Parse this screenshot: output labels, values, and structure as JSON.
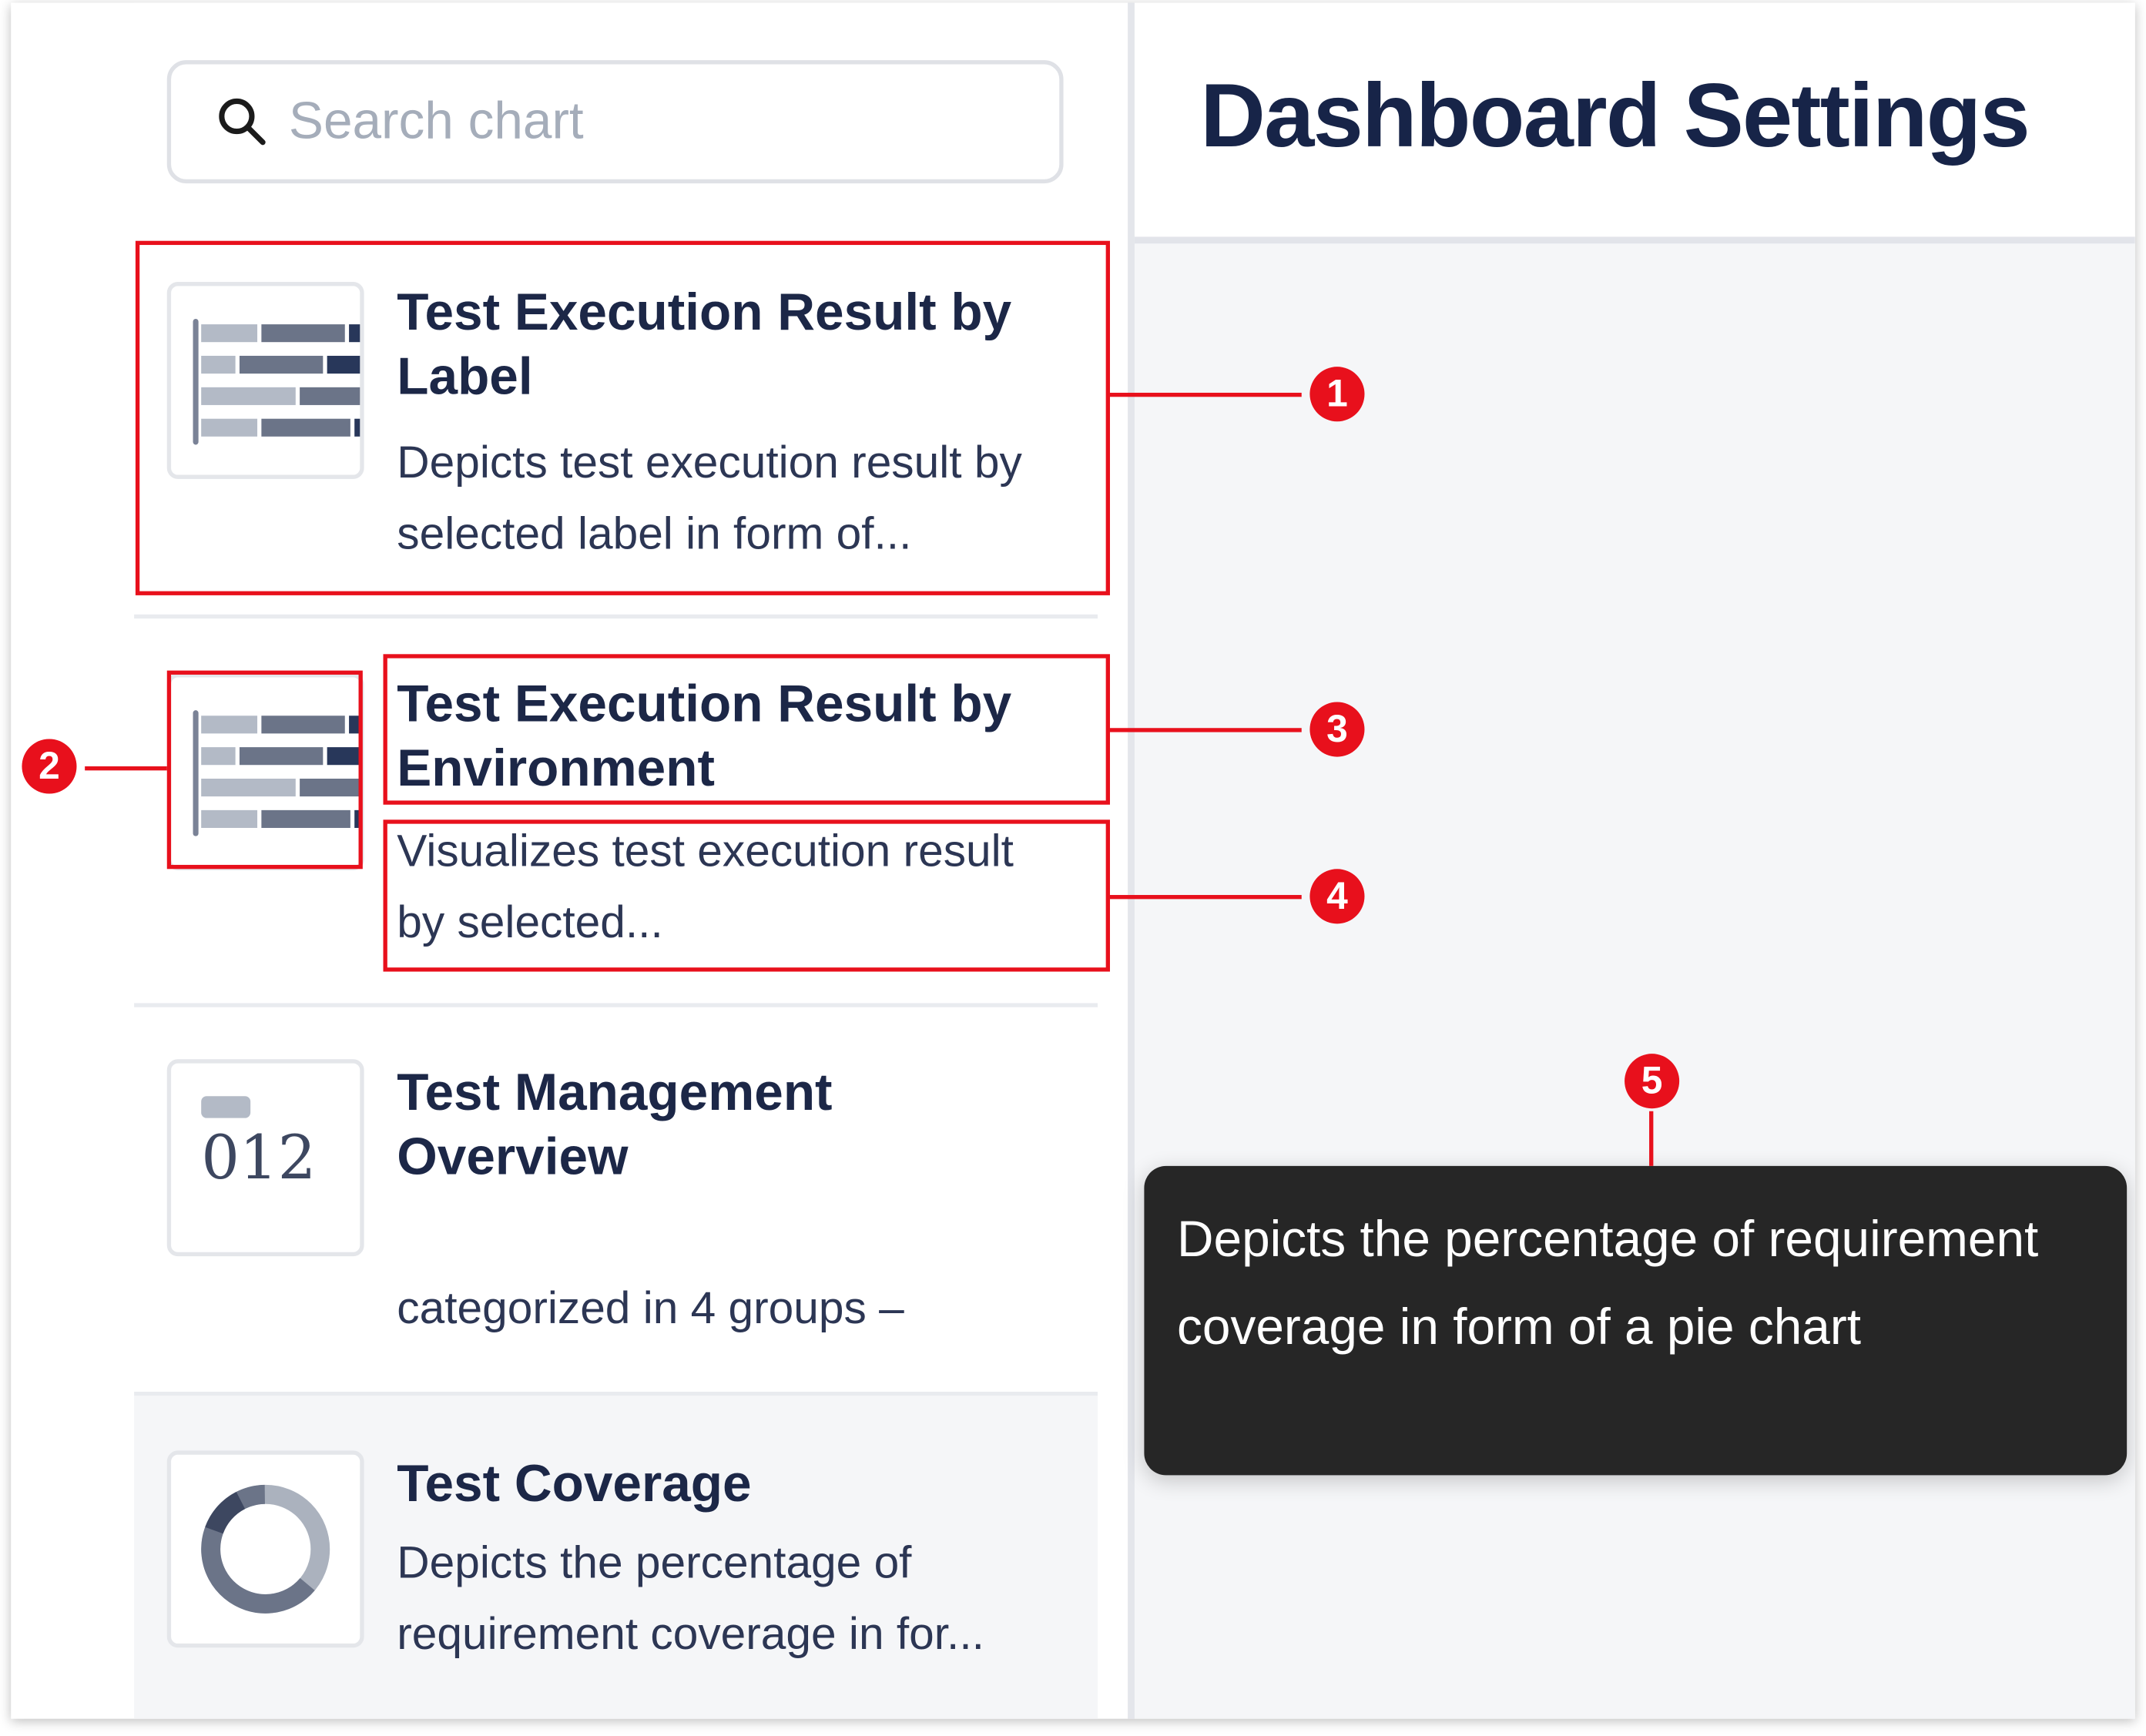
{
  "search": {
    "placeholder": "Search chart",
    "icon": "search-icon"
  },
  "header": {
    "title": "Dashboard Settings"
  },
  "charts": [
    {
      "title": "Test Execution Result by Label",
      "description": "Depicts test execution result by selected label in form of...",
      "icon": "stacked-bar-chart-icon"
    },
    {
      "title": "Test Execution Result by Environment",
      "description": "Visualizes test execution result by selected...",
      "icon": "stacked-bar-chart-icon"
    },
    {
      "title": "Test Management Overview",
      "description": "categorized in 4 groups –",
      "icon": "counter-icon",
      "icon_text": "012"
    },
    {
      "title": "Test Coverage",
      "description": "Depicts the percentage of requirement coverage in for...",
      "icon": "donut-chart-icon"
    }
  ],
  "tooltip": {
    "text": "Depicts the percentage of requirement coverage in form of a pie chart"
  },
  "annotations": [
    "1",
    "2",
    "3",
    "4",
    "5"
  ],
  "colors": {
    "annotation": "#e8101c",
    "title": "#172448",
    "tooltip_bg": "#262626"
  }
}
